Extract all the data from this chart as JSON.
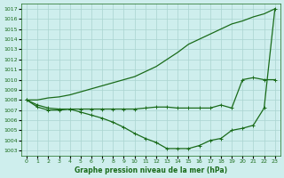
{
  "title": "Graphe pression niveau de la mer (hPa)",
  "bg_color": "#ceeeed",
  "grid_color": "#aad4d0",
  "line_color": "#1a6b1a",
  "ylim": [
    1002.5,
    1017.5
  ],
  "xlim": [
    -0.5,
    23.5
  ],
  "yticks": [
    1003,
    1004,
    1005,
    1006,
    1007,
    1008,
    1009,
    1010,
    1011,
    1012,
    1013,
    1014,
    1015,
    1016,
    1017
  ],
  "xticks": [
    0,
    1,
    2,
    3,
    4,
    5,
    6,
    7,
    8,
    9,
    10,
    11,
    12,
    13,
    14,
    15,
    16,
    17,
    18,
    19,
    20,
    21,
    22,
    23
  ],
  "line_upper_x": [
    0,
    1,
    2,
    3,
    4,
    5,
    6,
    7,
    8,
    9,
    10,
    11,
    12,
    13,
    14,
    15,
    16,
    17,
    18,
    19,
    20,
    21,
    22,
    23
  ],
  "line_upper_y": [
    1008.0,
    1008.0,
    1008.2,
    1008.3,
    1008.5,
    1008.8,
    1009.1,
    1009.4,
    1009.7,
    1010.0,
    1010.3,
    1010.8,
    1011.3,
    1012.0,
    1012.7,
    1013.5,
    1014.0,
    1014.5,
    1015.0,
    1015.5,
    1015.8,
    1016.2,
    1016.5,
    1017.0
  ],
  "line_mid_x": [
    0,
    1,
    2,
    3,
    4,
    5,
    6,
    7,
    8,
    9,
    10,
    11,
    12,
    13,
    14,
    15,
    16,
    17,
    18,
    19,
    20,
    21,
    22,
    23
  ],
  "line_mid_y": [
    1008.0,
    1007.5,
    1007.2,
    1007.1,
    1007.1,
    1007.1,
    1007.1,
    1007.1,
    1007.1,
    1007.1,
    1007.1,
    1007.2,
    1007.3,
    1007.3,
    1007.2,
    1007.2,
    1007.2,
    1007.2,
    1007.5,
    1007.2,
    1010.0,
    1010.2,
    1010.0,
    1010.0
  ],
  "line_lower_x": [
    0,
    1,
    2,
    3,
    4,
    5,
    6,
    7,
    8,
    9,
    10,
    11,
    12,
    13,
    14,
    15,
    16,
    17,
    18,
    19,
    20,
    21,
    22,
    23
  ],
  "line_lower_y": [
    1008.0,
    1007.3,
    1007.0,
    1007.0,
    1007.1,
    1006.8,
    1006.5,
    1006.2,
    1005.8,
    1005.3,
    1004.7,
    1004.2,
    1003.8,
    1003.2,
    1003.2,
    1003.2,
    1003.5,
    1004.0,
    1004.2,
    1005.0,
    1005.2,
    1005.5,
    1007.2,
    1017.0
  ],
  "marker": "+",
  "markersize": 3.5,
  "linewidth": 0.9
}
